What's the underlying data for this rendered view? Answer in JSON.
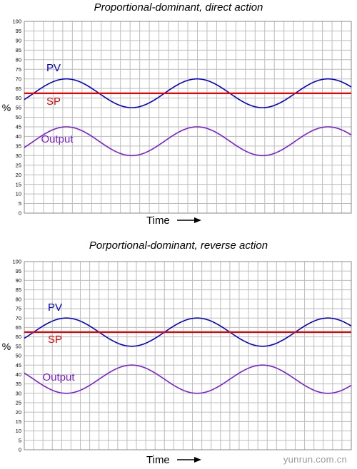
{
  "chart_data": [
    {
      "type": "line",
      "title": "Proportional-dominant, direct action",
      "xlabel": "Time",
      "ylabel": "%",
      "ylim": [
        0,
        100
      ],
      "yticks": [
        0,
        5,
        10,
        15,
        20,
        25,
        30,
        35,
        40,
        45,
        50,
        55,
        60,
        65,
        70,
        75,
        80,
        85,
        90,
        95,
        100
      ],
      "grid": true,
      "x_cycles": 2.5,
      "series": [
        {
          "name": "PV",
          "color": "#0000cc",
          "center": 62.5,
          "amplitude": 7.5,
          "phase": 0
        },
        {
          "name": "SP",
          "color": "#ee0000",
          "value": 62.5
        },
        {
          "name": "Output",
          "color": "#7a1fd6",
          "center": 37.5,
          "amplitude": 7.5,
          "phase": 0
        }
      ]
    },
    {
      "type": "line",
      "title": "Porportional-dominant, reverse action",
      "xlabel": "Time",
      "ylabel": "%",
      "ylim": [
        0,
        100
      ],
      "yticks": [
        0,
        5,
        10,
        15,
        20,
        25,
        30,
        35,
        40,
        45,
        50,
        55,
        60,
        65,
        70,
        75,
        80,
        85,
        90,
        95,
        100
      ],
      "grid": true,
      "x_cycles": 2.5,
      "series": [
        {
          "name": "PV",
          "color": "#0000cc",
          "center": 62.5,
          "amplitude": 7.5,
          "phase": 0
        },
        {
          "name": "SP",
          "color": "#ee0000",
          "value": 62.5
        },
        {
          "name": "Output",
          "color": "#7a1fd6",
          "center": 37.5,
          "amplitude": 7.5,
          "phase": 180
        }
      ]
    }
  ],
  "watermark": "yunrun.com.cn"
}
